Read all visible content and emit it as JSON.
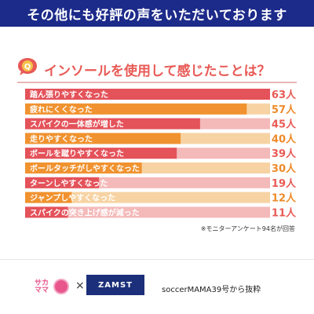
{
  "header": {
    "banner_text": "その他にも好評の声をいただいております"
  },
  "question": {
    "badge": "Q",
    "title": "インソールを使用して感じたことは？"
  },
  "chart_data": {
    "type": "bar",
    "orientation": "horizontal",
    "categories": [
      "踏ん張りやすくなった",
      "疲れにくくなった",
      "スパイクの一体感が増した",
      "走りやすくなった",
      "ボールを蹴りやすくなった",
      "ボールタッチがしやすくなった",
      "ターンしやすくなった",
      "ジャンプしやすくなった",
      "スパイクの突き上げ感が減った"
    ],
    "values": [
      63,
      57,
      45,
      40,
      39,
      30,
      19,
      12,
      11
    ],
    "value_labels": [
      "63人",
      "57人",
      "45人",
      "40人",
      "39人",
      "30人",
      "19人",
      "12人",
      "11人"
    ],
    "xlim": [
      0,
      63
    ],
    "colors": {
      "rose": "#e4525a",
      "rose_track": "#f4b9b9",
      "orange": "#f0922f",
      "orange_track": "#f7d3a3",
      "value_rose": "#e85a55",
      "value_orange": "#ee8a2a"
    },
    "palette": [
      "rose",
      "orange",
      "rose",
      "orange",
      "rose",
      "orange",
      "rose",
      "orange",
      "rose"
    ],
    "legend": "none",
    "grid": false
  },
  "note": "※モニターアンケート94名が回答",
  "footer": {
    "logo_sakamama": "サカママ",
    "times": "×",
    "logo_zamst": "ZAMST",
    "source": "soccerMAMA39号から抜粋"
  }
}
